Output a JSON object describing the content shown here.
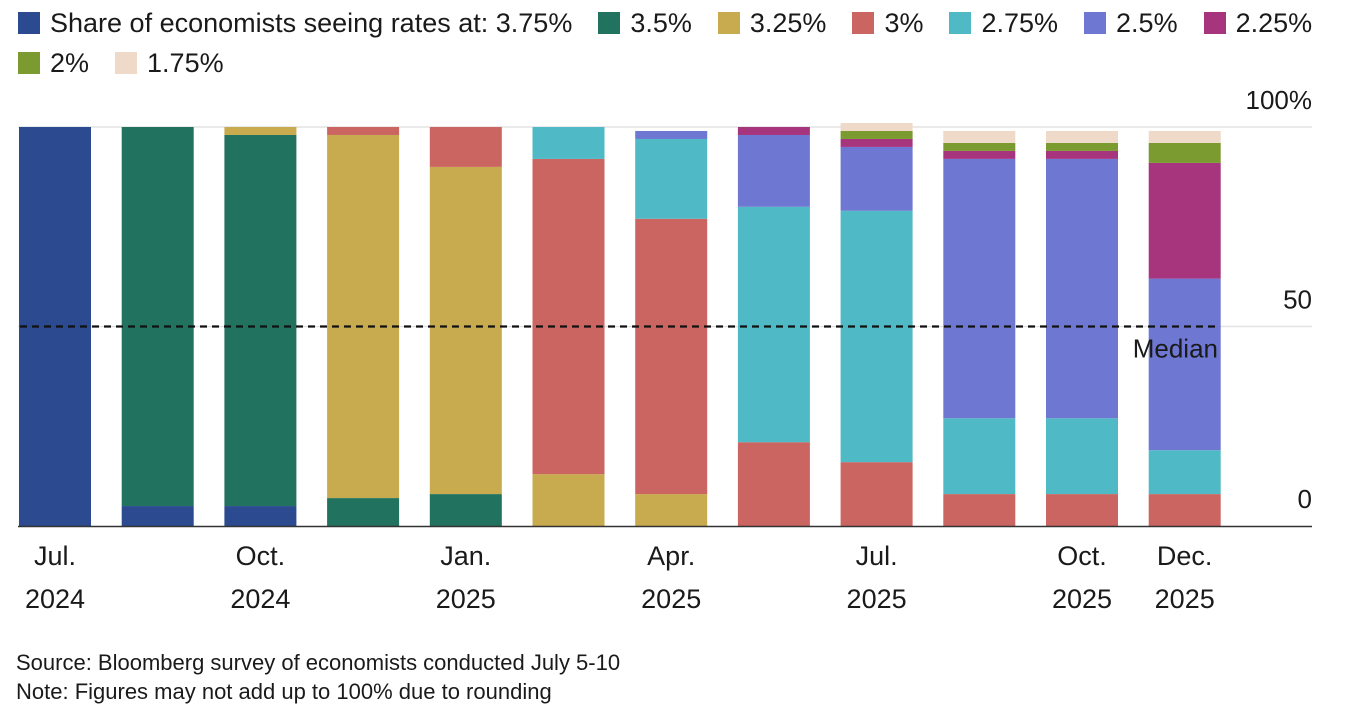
{
  "chart_data": {
    "type": "bar",
    "stacked": true,
    "legend_title": "Share of economists seeing rates at:",
    "legend_placement": "top",
    "series": [
      {
        "name": "3.75%",
        "color": "#2b4a8f",
        "values": [
          100,
          5,
          5,
          0,
          0,
          0,
          0,
          0,
          0,
          0,
          0,
          0
        ]
      },
      {
        "name": "3.5%",
        "color": "#21725f",
        "values": [
          0,
          95,
          93,
          7,
          8,
          0,
          0,
          0,
          0,
          0,
          0,
          0
        ]
      },
      {
        "name": "3.25%",
        "color": "#c8aa4f",
        "values": [
          0,
          0,
          2,
          91,
          82,
          13,
          8,
          0,
          0,
          0,
          0,
          0
        ]
      },
      {
        "name": "3%",
        "color": "#cb6561",
        "values": [
          0,
          0,
          0,
          2,
          10,
          79,
          69,
          21,
          16,
          8,
          8,
          8
        ]
      },
      {
        "name": "2.75%",
        "color": "#4fb9c5",
        "values": [
          0,
          0,
          0,
          0,
          0,
          8,
          20,
          59,
          63,
          19,
          19,
          11
        ]
      },
      {
        "name": "2.5%",
        "color": "#6e78d2",
        "values": [
          0,
          0,
          0,
          0,
          0,
          0,
          2,
          18,
          16,
          65,
          65,
          43
        ]
      },
      {
        "name": "2.25%",
        "color": "#a6357e",
        "values": [
          0,
          0,
          0,
          0,
          0,
          0,
          0,
          2,
          2,
          2,
          2,
          29
        ]
      },
      {
        "name": "2%",
        "color": "#7b9b30",
        "values": [
          0,
          0,
          0,
          0,
          0,
          0,
          0,
          0,
          2,
          2,
          2,
          5
        ]
      },
      {
        "name": "1.75%",
        "color": "#efd9c8",
        "values": [
          0,
          0,
          0,
          0,
          0,
          0,
          0,
          0,
          2,
          3,
          3,
          3
        ]
      }
    ],
    "x_tick_labels": [
      {
        "index": 0,
        "line1": "Jul.",
        "line2": "2024"
      },
      {
        "index": 2,
        "line1": "Oct.",
        "line2": "2024"
      },
      {
        "index": 4,
        "line1": "Jan.",
        "line2": "2025"
      },
      {
        "index": 6,
        "line1": "Apr.",
        "line2": "2025"
      },
      {
        "index": 8,
        "line1": "Jul.",
        "line2": "2025"
      },
      {
        "index": 10,
        "line1": "Oct.",
        "line2": "2025"
      },
      {
        "index": 11,
        "line1": "Dec.",
        "line2": "2025"
      }
    ],
    "y_ticks": [
      {
        "value": 100,
        "label": "100%"
      },
      {
        "value": 50,
        "label": "50"
      },
      {
        "value": 0,
        "label": "0"
      }
    ],
    "ylim": [
      0,
      100
    ],
    "median_line": {
      "value": 50,
      "label": "Median"
    }
  },
  "footer": {
    "source": "Source: Bloomberg survey of economists conducted July 5-10",
    "note": "Note: Figures may not add up to 100% due to rounding"
  }
}
